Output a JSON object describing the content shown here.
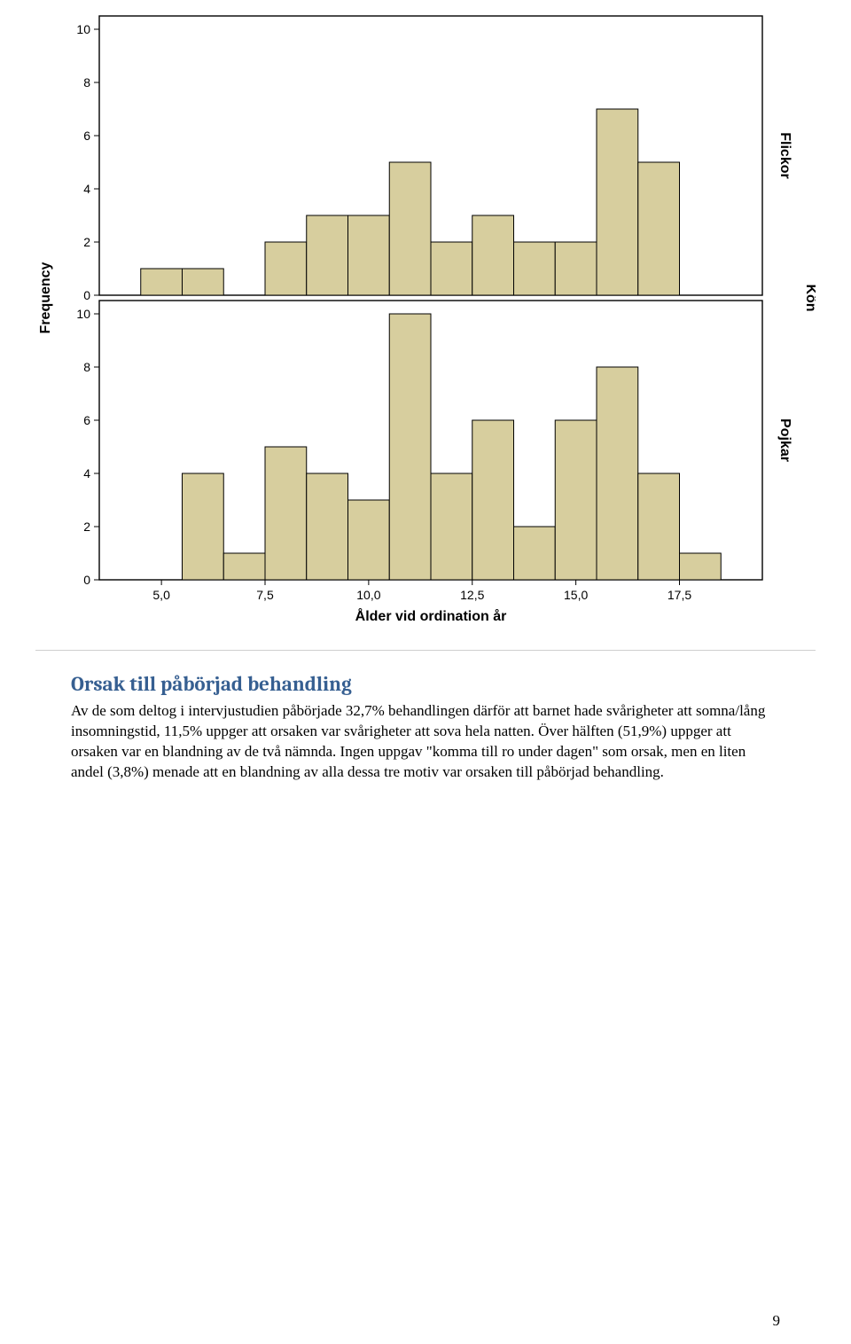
{
  "page_number": "9",
  "heading": "Orsak till påbörjad behandling",
  "body_text": "Av de som deltog i intervjustudien påbörjade 32,7% behandlingen därför att barnet hade svårigheter att somna/lång insomningstid, 11,5% uppger att orsaken var svårigheter att sova hela natten. Över hälften (51,9%) uppger att orsaken var en blandning av de två nämnda. Ingen uppgav \"komma till ro under dagen\" som orsak, men en liten andel (3,8%) menade att en blandning av alla dessa tre motiv var orsaken till påbörjad behandling.",
  "chart": {
    "type": "histogram",
    "y_axis_label": "Frequency",
    "x_axis_label": "Ålder vid ordination år",
    "facet_axis_label": "Kön",
    "background_color": "#ffffff",
    "panel_background": "#ffffff",
    "panel_border_color": "#000000",
    "bar_fill": "#d7ce9e",
    "bar_stroke": "#000000",
    "tick_font_size": 14,
    "axis_label_font_size": 16,
    "facet_label_font_size": 16,
    "x_ticks": [
      "5,0",
      "7,5",
      "10,0",
      "12,5",
      "15,0",
      "17,5"
    ],
    "x_tick_values": [
      5.0,
      7.5,
      10.0,
      12.5,
      15.0,
      17.5
    ],
    "x_range": [
      3.5,
      19.5
    ],
    "x_bin_width": 1.0,
    "panels": [
      {
        "facet_label": "Flickor",
        "y_ticks": [
          0,
          2,
          4,
          6,
          8,
          10
        ],
        "y_max": 10.5,
        "bars": [
          {
            "x": 5,
            "y": 1
          },
          {
            "x": 6,
            "y": 1
          },
          {
            "x": 8,
            "y": 2
          },
          {
            "x": 9,
            "y": 3
          },
          {
            "x": 10,
            "y": 3
          },
          {
            "x": 11,
            "y": 5
          },
          {
            "x": 12,
            "y": 2
          },
          {
            "x": 13,
            "y": 3
          },
          {
            "x": 14,
            "y": 2
          },
          {
            "x": 15,
            "y": 2
          },
          {
            "x": 16,
            "y": 7
          },
          {
            "x": 17,
            "y": 5
          }
        ]
      },
      {
        "facet_label": "Pojkar",
        "y_ticks": [
          0,
          2,
          4,
          6,
          8,
          10
        ],
        "y_max": 10.5,
        "bars": [
          {
            "x": 6,
            "y": 4
          },
          {
            "x": 7,
            "y": 1
          },
          {
            "x": 8,
            "y": 5
          },
          {
            "x": 9,
            "y": 4
          },
          {
            "x": 10,
            "y": 3
          },
          {
            "x": 11,
            "y": 10
          },
          {
            "x": 12,
            "y": 4
          },
          {
            "x": 13,
            "y": 6
          },
          {
            "x": 14,
            "y": 2
          },
          {
            "x": 15,
            "y": 6
          },
          {
            "x": 16,
            "y": 8
          },
          {
            "x": 17,
            "y": 4
          },
          {
            "x": 18,
            "y": 1
          }
        ]
      }
    ]
  }
}
